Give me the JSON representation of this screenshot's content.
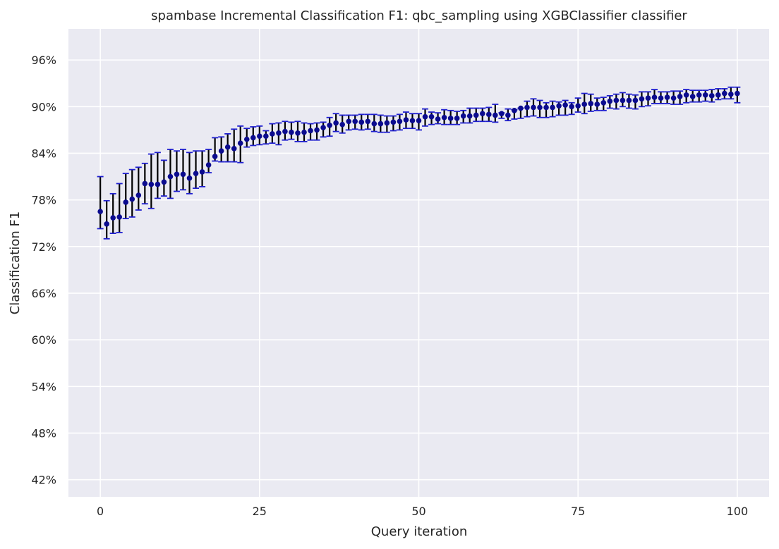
{
  "chart_data": {
    "type": "scatter",
    "title": "spambase Incremental Classification F1: qbc_sampling using XGBClassifier classifier",
    "xlabel": "Query iteration",
    "ylabel": "Classification F1",
    "xlim": [
      -5,
      105
    ],
    "ylim": [
      0.398,
      1.0
    ],
    "x_ticks": [
      0,
      25,
      50,
      75,
      100
    ],
    "y_ticks": [
      0.42,
      0.48,
      0.54,
      0.6,
      0.66,
      0.72,
      0.78,
      0.84,
      0.9,
      0.96
    ],
    "y_tick_labels": [
      "42%",
      "48%",
      "54%",
      "60%",
      "66%",
      "72%",
      "78%",
      "84%",
      "90%",
      "96%"
    ],
    "grid": true,
    "colors": {
      "background": "#eaeaf2",
      "grid": "#ffffff",
      "point": "#0b0b8f",
      "errorbar": "#000000",
      "cap": "#1f1fd0"
    },
    "series": [
      {
        "x": [
          0,
          1,
          2,
          3,
          4,
          5,
          6,
          7,
          8,
          9,
          10,
          11,
          12,
          13,
          14,
          15,
          16,
          17,
          18,
          19,
          20,
          21,
          22,
          23,
          24,
          25,
          26,
          27,
          28,
          29,
          30,
          31,
          32,
          33,
          34,
          35,
          36,
          37,
          38,
          39,
          40,
          41,
          42,
          43,
          44,
          45,
          46,
          47,
          48,
          49,
          50,
          51,
          52,
          53,
          54,
          55,
          56,
          57,
          58,
          59,
          60,
          61,
          62,
          63,
          64,
          65,
          66,
          67,
          68,
          69,
          70,
          71,
          72,
          73,
          74,
          75,
          76,
          77,
          78,
          79,
          80,
          81,
          82,
          83,
          84,
          85,
          86,
          87,
          88,
          89,
          90,
          91,
          92,
          93,
          94,
          95,
          96,
          97,
          98,
          99,
          100
        ],
        "y": [
          0.765,
          0.749,
          0.757,
          0.758,
          0.777,
          0.781,
          0.786,
          0.801,
          0.8,
          0.8,
          0.803,
          0.81,
          0.813,
          0.813,
          0.808,
          0.814,
          0.816,
          0.825,
          0.836,
          0.843,
          0.848,
          0.846,
          0.853,
          0.858,
          0.86,
          0.862,
          0.862,
          0.865,
          0.866,
          0.868,
          0.867,
          0.866,
          0.867,
          0.869,
          0.87,
          0.873,
          0.876,
          0.879,
          0.877,
          0.881,
          0.881,
          0.88,
          0.881,
          0.878,
          0.878,
          0.879,
          0.88,
          0.881,
          0.883,
          0.882,
          0.882,
          0.887,
          0.887,
          0.884,
          0.886,
          0.885,
          0.885,
          0.888,
          0.888,
          0.889,
          0.891,
          0.89,
          0.889,
          0.891,
          0.889,
          0.895,
          0.898,
          0.899,
          0.899,
          0.899,
          0.899,
          0.899,
          0.901,
          0.902,
          0.9,
          0.901,
          0.903,
          0.904,
          0.903,
          0.905,
          0.907,
          0.908,
          0.908,
          0.908,
          0.908,
          0.91,
          0.911,
          0.912,
          0.911,
          0.912,
          0.911,
          0.913,
          0.915,
          0.913,
          0.915,
          0.915,
          0.914,
          0.915,
          0.917,
          0.916,
          0.917
        ],
        "err_low": [
          0.743,
          0.73,
          0.737,
          0.738,
          0.756,
          0.758,
          0.767,
          0.775,
          0.769,
          0.782,
          0.785,
          0.782,
          0.791,
          0.793,
          0.788,
          0.795,
          0.797,
          0.815,
          0.83,
          0.829,
          0.829,
          0.829,
          0.828,
          0.848,
          0.85,
          0.851,
          0.852,
          0.853,
          0.851,
          0.857,
          0.858,
          0.855,
          0.855,
          0.857,
          0.857,
          0.861,
          0.862,
          0.868,
          0.866,
          0.87,
          0.871,
          0.87,
          0.871,
          0.868,
          0.867,
          0.867,
          0.869,
          0.87,
          0.872,
          0.872,
          0.87,
          0.875,
          0.877,
          0.878,
          0.877,
          0.877,
          0.877,
          0.879,
          0.879,
          0.881,
          0.881,
          0.881,
          0.88,
          0.885,
          0.882,
          0.884,
          0.885,
          0.887,
          0.888,
          0.886,
          0.886,
          0.887,
          0.889,
          0.889,
          0.89,
          0.893,
          0.891,
          0.894,
          0.895,
          0.895,
          0.898,
          0.897,
          0.9,
          0.898,
          0.897,
          0.9,
          0.901,
          0.904,
          0.904,
          0.904,
          0.903,
          0.903,
          0.905,
          0.906,
          0.906,
          0.907,
          0.906,
          0.909,
          0.91,
          0.91,
          0.905
        ],
        "err_high": [
          0.81,
          0.779,
          0.788,
          0.801,
          0.814,
          0.819,
          0.822,
          0.827,
          0.839,
          0.841,
          0.831,
          0.845,
          0.843,
          0.845,
          0.841,
          0.843,
          0.843,
          0.845,
          0.86,
          0.861,
          0.865,
          0.871,
          0.875,
          0.872,
          0.874,
          0.875,
          0.869,
          0.878,
          0.879,
          0.881,
          0.88,
          0.881,
          0.879,
          0.878,
          0.879,
          0.88,
          0.886,
          0.891,
          0.889,
          0.889,
          0.889,
          0.89,
          0.89,
          0.89,
          0.889,
          0.888,
          0.888,
          0.89,
          0.893,
          0.891,
          0.891,
          0.897,
          0.893,
          0.892,
          0.896,
          0.895,
          0.894,
          0.895,
          0.898,
          0.898,
          0.898,
          0.899,
          0.903,
          0.892,
          0.897,
          0.896,
          0.898,
          0.907,
          0.91,
          0.908,
          0.905,
          0.907,
          0.906,
          0.908,
          0.905,
          0.911,
          0.917,
          0.916,
          0.911,
          0.912,
          0.914,
          0.916,
          0.918,
          0.916,
          0.915,
          0.919,
          0.919,
          0.922,
          0.919,
          0.919,
          0.92,
          0.92,
          0.922,
          0.921,
          0.921,
          0.921,
          0.922,
          0.923,
          0.923,
          0.925,
          0.925
        ]
      }
    ]
  }
}
